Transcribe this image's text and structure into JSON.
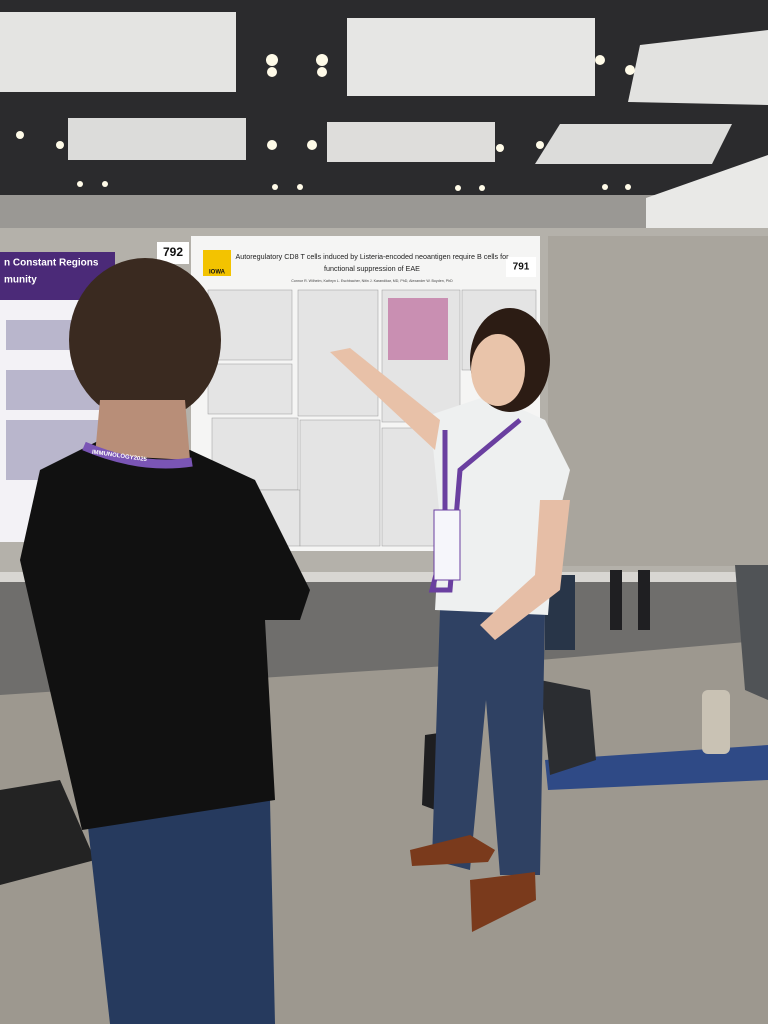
{
  "board_numbers": {
    "left": "792",
    "right": "791"
  },
  "poster": {
    "logo": "IOWA",
    "title_lines": [
      "Autoregulatory CD8 T cells induced by Listeria-encoded neoantigen require B cells for",
      "functional suppression of EAE"
    ],
    "authors": "Connor R. Wilhelm, Kathryn L. Eschbacher, Nitin J. Karandikar, MD, PhD, Alexander W. Boyden, PhD"
  },
  "left_poster": {
    "heading_lines": [
      "n Constant Regions",
      "munity"
    ]
  },
  "lanyard": "IMMUNOLOGY2025"
}
